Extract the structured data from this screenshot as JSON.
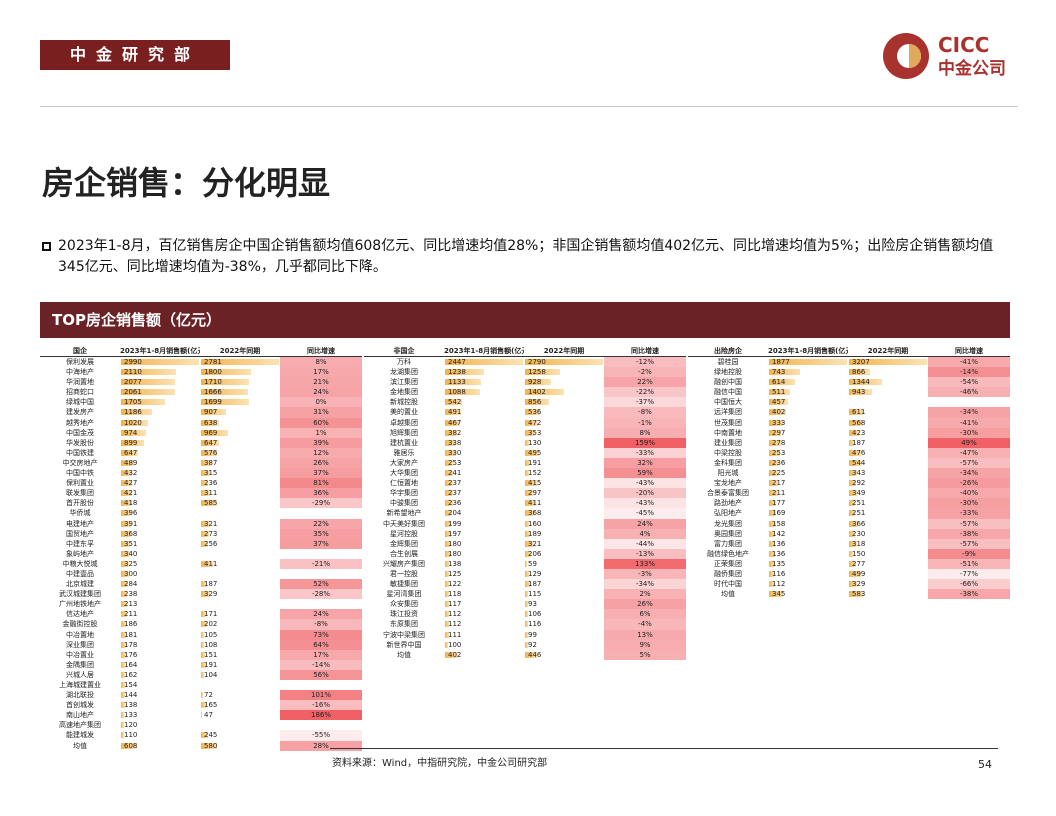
{
  "header": {
    "dept": "中金研究部",
    "logo_en": "CICC",
    "logo_cn": "中金公司"
  },
  "title": "房企销售：分化明显",
  "bullet": "2023年1-8月，百亿销售房企中国企销售额均值608亿元、同比增速均值28%；非国企销售额均值402亿元、同比增速均值为5%；出险房企销售额均值345亿元、同比增速均值为-38%，几乎都同比下降。",
  "section": "TOP房企销售额（亿元）",
  "tables": [
    {
      "columns": [
        "国企",
        "2023年1-8月销售额(亿元)",
        "2022年同期",
        "同比增速"
      ],
      "rows": [
        [
          "保利发展",
          2990,
          2781,
          "8%"
        ],
        [
          "中海地产",
          2110,
          1800,
          "17%"
        ],
        [
          "华润置地",
          2077,
          1710,
          "21%"
        ],
        [
          "招商蛇口",
          2061,
          1666,
          "24%"
        ],
        [
          "绿城中国",
          1705,
          1699,
          "0%"
        ],
        [
          "建发房产",
          1186,
          907,
          "31%"
        ],
        [
          "越秀地产",
          1020,
          638,
          "60%"
        ],
        [
          "中国金茂",
          974,
          969,
          "1%"
        ],
        [
          "华发股份",
          899,
          647,
          "39%"
        ],
        [
          "中国铁建",
          647,
          576,
          "12%"
        ],
        [
          "中交房地产",
          489,
          387,
          "26%"
        ],
        [
          "中国中铁",
          432,
          315,
          "37%"
        ],
        [
          "保利置业",
          427,
          236,
          "81%"
        ],
        [
          "联发集团",
          421,
          311,
          "36%"
        ],
        [
          "首开股份",
          418,
          585,
          "-29%"
        ],
        [
          "华侨城",
          396,
          null,
          null
        ],
        [
          "电建地产",
          391,
          321,
          "22%"
        ],
        [
          "国贸地产",
          368,
          273,
          "35%"
        ],
        [
          "中建东孚",
          351,
          256,
          "37%"
        ],
        [
          "象屿地产",
          340,
          null,
          null
        ],
        [
          "中粮大悦城",
          325,
          411,
          "-21%"
        ],
        [
          "中建壹品",
          300,
          null,
          null
        ],
        [
          "北京城建",
          284,
          187,
          "52%"
        ],
        [
          "武汉城建集团",
          238,
          329,
          "-28%"
        ],
        [
          "广州地铁地产",
          213,
          null,
          null
        ],
        [
          "信达地产",
          211,
          171,
          "24%"
        ],
        [
          "金融街控股",
          186,
          202,
          "-8%"
        ],
        [
          "中冶置地",
          181,
          105,
          "73%"
        ],
        [
          "深业集团",
          178,
          108,
          "64%"
        ],
        [
          "中冶置业",
          176,
          151,
          "17%"
        ],
        [
          "金隅集团",
          164,
          191,
          "-14%"
        ],
        [
          "兴城人居",
          162,
          104,
          "56%"
        ],
        [
          "上海城建置业",
          154,
          null,
          null
        ],
        [
          "湖北联投",
          144,
          72,
          "101%"
        ],
        [
          "首创城发",
          138,
          165,
          "-16%"
        ],
        [
          "南山地产",
          133,
          47,
          "186%"
        ],
        [
          "高速地产集团",
          120,
          null,
          null
        ],
        [
          "能建城发",
          110,
          245,
          "-55%"
        ],
        [
          "均值",
          608,
          580,
          "28%"
        ]
      ]
    },
    {
      "columns": [
        "非国企",
        "2023年1-8月销售额(亿元)",
        "2022年同期",
        "同比增速"
      ],
      "rows": [
        [
          "万科",
          2447,
          2790,
          "-12%"
        ],
        [
          "龙湖集团",
          1238,
          1258,
          "-2%"
        ],
        [
          "滨江集团",
          1133,
          928,
          "22%"
        ],
        [
          "金地集团",
          1088,
          1402,
          "-22%"
        ],
        [
          "新城控股",
          542,
          856,
          "-37%"
        ],
        [
          "美的置业",
          491,
          536,
          "-8%"
        ],
        [
          "卓越集团",
          467,
          472,
          "-1%"
        ],
        [
          "旭辉集团",
          382,
          353,
          "8%"
        ],
        [
          "建杭置业",
          338,
          130,
          "159%"
        ],
        [
          "雅居乐",
          330,
          495,
          "-33%"
        ],
        [
          "大家房产",
          253,
          191,
          "32%"
        ],
        [
          "大华集团",
          241,
          152,
          "59%"
        ],
        [
          "仁恒置地",
          237,
          415,
          "-43%"
        ],
        [
          "华宇集团",
          237,
          297,
          "-20%"
        ],
        [
          "中骏集团",
          236,
          411,
          "-43%"
        ],
        [
          "新希望地产",
          204,
          368,
          "-45%"
        ],
        [
          "中天美好集团",
          199,
          160,
          "24%"
        ],
        [
          "星河控股",
          197,
          189,
          "4%"
        ],
        [
          "金辉集团",
          180,
          321,
          "-44%"
        ],
        [
          "合生创展",
          180,
          206,
          "-13%"
        ],
        [
          "兴耀房产集团",
          138,
          59,
          "133%"
        ],
        [
          "君一控股",
          125,
          129,
          "-3%"
        ],
        [
          "敏捷集团",
          122,
          187,
          "-34%"
        ],
        [
          "星河湾集团",
          118,
          115,
          "2%"
        ],
        [
          "众安集团",
          117,
          93,
          "26%"
        ],
        [
          "珠江投资",
          112,
          106,
          "6%"
        ],
        [
          "东原集团",
          112,
          116,
          "-4%"
        ],
        [
          "宁波中梁集团",
          111,
          99,
          "13%"
        ],
        [
          "新世界中国",
          100,
          92,
          "9%"
        ],
        [
          "均值",
          402,
          446,
          "5%"
        ]
      ]
    },
    {
      "columns": [
        "出险房企",
        "2023年1-8月销售额(亿元)",
        "2022年同期",
        "同比增速"
      ],
      "rows": [
        [
          "碧桂园",
          1877,
          3207,
          "-41%"
        ],
        [
          "绿地控股",
          743,
          866,
          "-14%"
        ],
        [
          "融创中国",
          614,
          1344,
          "-54%"
        ],
        [
          "融信中国",
          511,
          943,
          "-46%"
        ],
        [
          "中国恒大",
          457,
          null,
          null
        ],
        [
          "远洋集团",
          402,
          611,
          "-34%"
        ],
        [
          "世茂集团",
          333,
          568,
          "-41%"
        ],
        [
          "中南置地",
          297,
          423,
          "-30%"
        ],
        [
          "建业集团",
          278,
          187,
          "49%"
        ],
        [
          "中梁控股",
          253,
          476,
          "-47%"
        ],
        [
          "金科集团",
          236,
          544,
          "-57%"
        ],
        [
          "阳光城",
          225,
          343,
          "-34%"
        ],
        [
          "宝龙地产",
          217,
          292,
          "-26%"
        ],
        [
          "合景泰富集团",
          211,
          349,
          "-40%"
        ],
        [
          "路劲地产",
          177,
          251,
          "-30%"
        ],
        [
          "弘阳地产",
          169,
          251,
          "-33%"
        ],
        [
          "龙光集团",
          158,
          366,
          "-57%"
        ],
        [
          "奥园集团",
          142,
          230,
          "-38%"
        ],
        [
          "富力集团",
          136,
          318,
          "-57%"
        ],
        [
          "融信绿色地产",
          136,
          150,
          "-9%"
        ],
        [
          "正荣集团",
          135,
          277,
          "-51%"
        ],
        [
          "融侨集团",
          116,
          499,
          "-77%"
        ],
        [
          "时代中国",
          112,
          329,
          "-66%"
        ],
        [
          "均值",
          345,
          583,
          "-38%"
        ]
      ]
    }
  ],
  "source": "资料来源：Wind，中指研究院，中金公司研究部",
  "page": "54"
}
